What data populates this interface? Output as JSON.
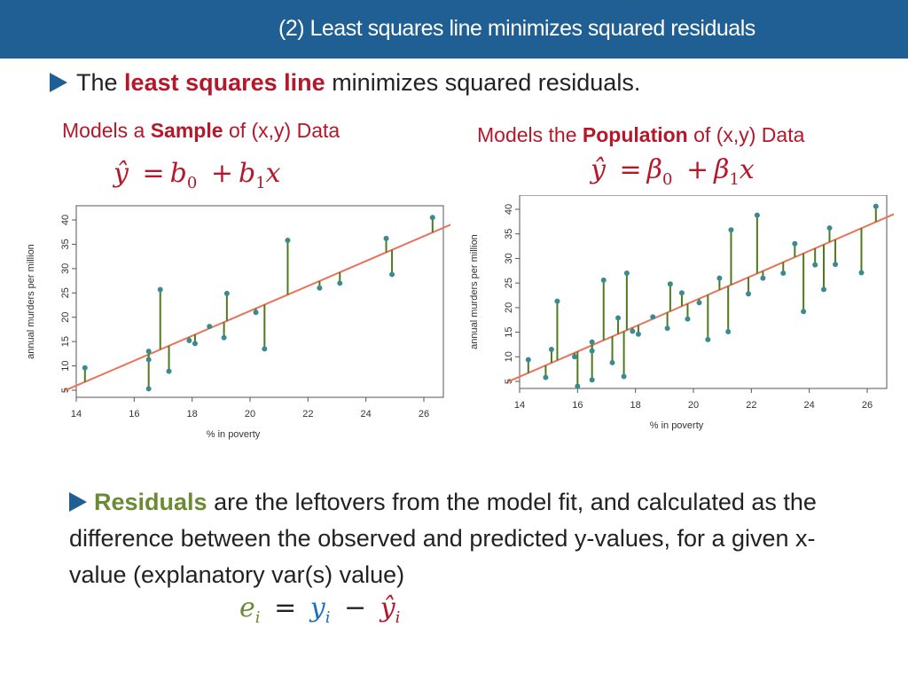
{
  "header": {
    "title": "(2) Least squares line minimizes squared residuals"
  },
  "bullet1": {
    "prefix": "The",
    "highlight": "least squares line",
    "suffix": "minimizes squared residuals."
  },
  "left": {
    "caption_pre": "Models a",
    "caption_bold": "Sample",
    "caption_post": "of (x,y) Data",
    "formula_yhat": "ŷ",
    "formula_eq": "=",
    "formula_b": "b",
    "formula_sub0": "0",
    "formula_plus": "+",
    "formula_sub1": "1",
    "formula_x": "x"
  },
  "right": {
    "caption_pre": "Models the",
    "caption_bold": "Population",
    "caption_post": "of (x,y) Data",
    "formula_yhat": "ŷ",
    "formula_eq": "=",
    "formula_beta": "β",
    "formula_sub0": "0",
    "formula_plus": "+",
    "formula_sub1": "1",
    "formula_x": "x"
  },
  "plot_text": {
    "xlabel": "% in poverty",
    "ylabel": "annual murders per million",
    "xticks": [
      "14",
      "16",
      "18",
      "20",
      "22",
      "24",
      "26"
    ],
    "yticks": [
      "5",
      "10",
      "15",
      "20",
      "25",
      "30",
      "35",
      "40"
    ]
  },
  "colors": {
    "header": "#1f5f94",
    "accent_red": "#b5182a",
    "residual_green": "#4f7a1e",
    "line": "#e8735a",
    "point": "#3b8a8f",
    "accent_green": "#6a8b33"
  },
  "chart_data": [
    {
      "type": "scatter",
      "title": "",
      "xlabel": "% in poverty",
      "ylabel": "annual murders per million",
      "xlim": [
        14,
        26
      ],
      "ylim": [
        5,
        40
      ],
      "regression_line": {
        "intercept": -29.9,
        "slope": 2.56
      },
      "points": [
        [
          14.3,
          9.6
        ],
        [
          16.5,
          13.0
        ],
        [
          16.5,
          11.3
        ],
        [
          16.5,
          5.3
        ],
        [
          16.9,
          25.7
        ],
        [
          17.2,
          8.9
        ],
        [
          17.9,
          15.2
        ],
        [
          18.1,
          14.6
        ],
        [
          18.6,
          18.1
        ],
        [
          19.1,
          15.8
        ],
        [
          19.2,
          24.9
        ],
        [
          20.2,
          21.0
        ],
        [
          20.5,
          13.5
        ],
        [
          21.3,
          35.8
        ],
        [
          22.4,
          26.0
        ],
        [
          23.1,
          27.0
        ],
        [
          24.7,
          36.2
        ],
        [
          24.9,
          28.8
        ],
        [
          26.3,
          40.5
        ]
      ]
    },
    {
      "type": "scatter",
      "title": "",
      "xlabel": "% in poverty",
      "ylabel": "annual murders per million",
      "xlim": [
        14,
        26
      ],
      "ylim": [
        5,
        40
      ],
      "regression_line": {
        "intercept": -29.9,
        "slope": 2.56
      },
      "points": [
        [
          14.3,
          9.4
        ],
        [
          14.9,
          5.8
        ],
        [
          15.1,
          11.5
        ],
        [
          15.3,
          21.3
        ],
        [
          15.9,
          10.0
        ],
        [
          16.0,
          4.0
        ],
        [
          16.5,
          13.0
        ],
        [
          16.5,
          11.2
        ],
        [
          16.5,
          5.3
        ],
        [
          16.9,
          25.6
        ],
        [
          17.2,
          8.8
        ],
        [
          17.4,
          17.9
        ],
        [
          17.6,
          6.0
        ],
        [
          17.7,
          27.0
        ],
        [
          17.9,
          15.2
        ],
        [
          18.1,
          14.6
        ],
        [
          18.6,
          18.1
        ],
        [
          19.1,
          15.8
        ],
        [
          19.2,
          24.8
        ],
        [
          19.6,
          23.0
        ],
        [
          19.8,
          17.7
        ],
        [
          20.2,
          21.0
        ],
        [
          20.5,
          13.5
        ],
        [
          20.9,
          26.0
        ],
        [
          21.2,
          15.1
        ],
        [
          21.3,
          35.8
        ],
        [
          21.9,
          22.8
        ],
        [
          22.2,
          38.8
        ],
        [
          22.4,
          26.0
        ],
        [
          23.1,
          27.0
        ],
        [
          23.5,
          33.0
        ],
        [
          23.8,
          19.2
        ],
        [
          24.2,
          28.7
        ],
        [
          24.5,
          23.7
        ],
        [
          24.7,
          36.2
        ],
        [
          24.9,
          28.8
        ],
        [
          25.8,
          27.1
        ],
        [
          26.3,
          40.6
        ]
      ]
    }
  ]
}
